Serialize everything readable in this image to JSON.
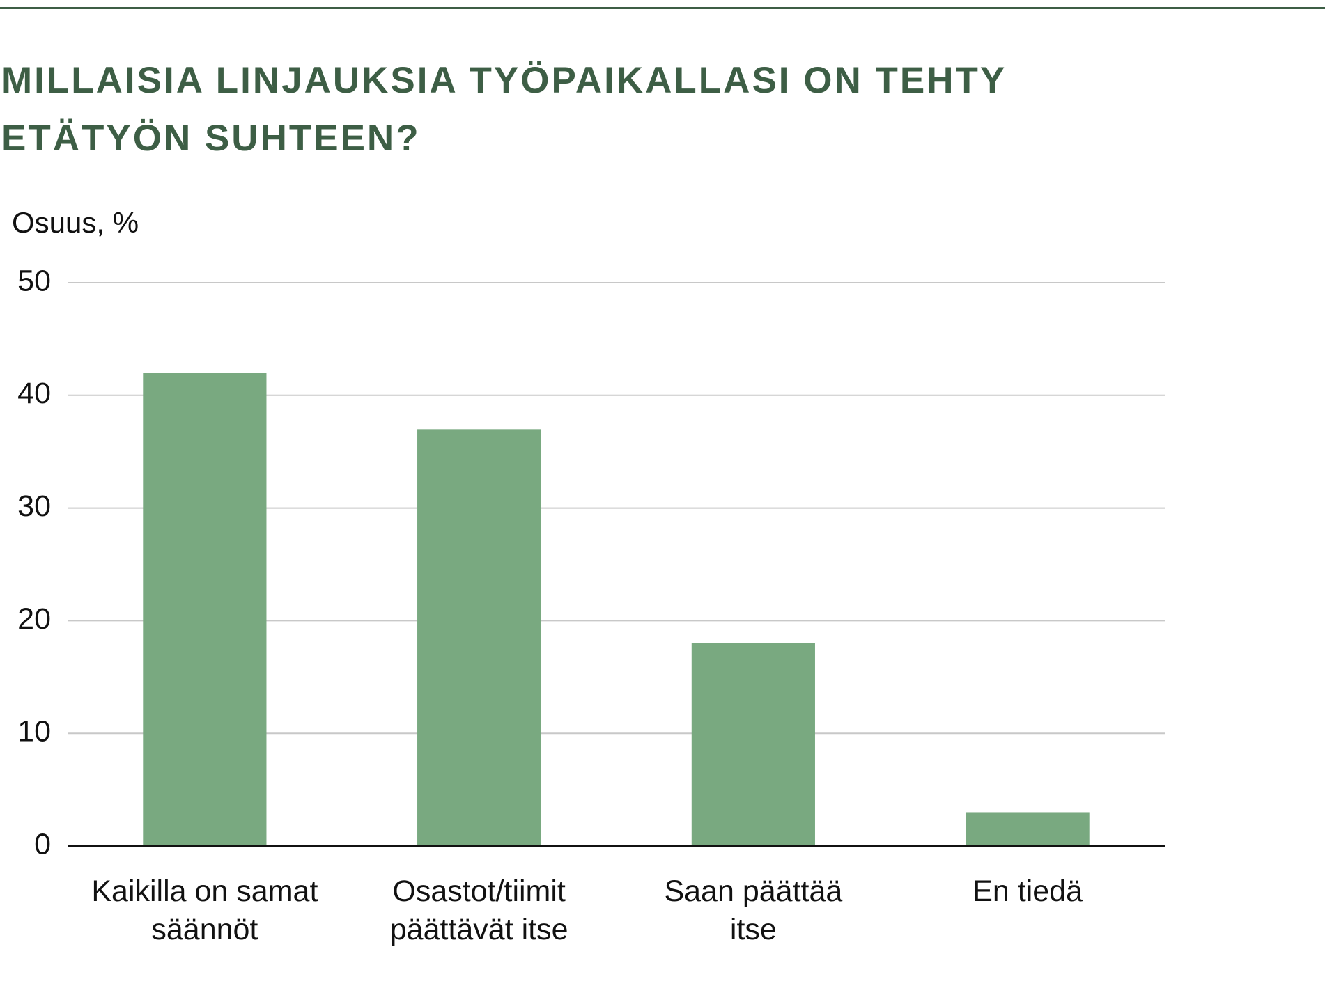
{
  "chart_data": {
    "type": "bar",
    "title": "MILLAISIA LINJAUKSIA TYÖPAIKALLASI ON TEHTY ETÄTYÖN SUHTEEN?",
    "y_label": "Osuus, %",
    "categories": [
      "Kaikilla on samat säännöt",
      "Osastot/tiimit päättävät itse",
      "Saan päättää itse",
      "En tiedä"
    ],
    "values": [
      42,
      37,
      18,
      3
    ],
    "color": "#79a980",
    "ylim": [
      0,
      50
    ],
    "yticks": [
      0,
      10,
      20,
      30,
      40,
      50
    ],
    "grid": true
  }
}
